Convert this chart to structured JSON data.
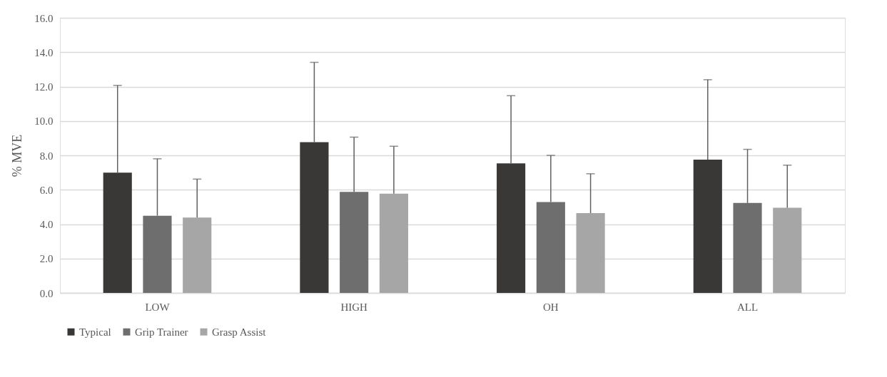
{
  "chart_data": {
    "type": "bar",
    "ylabel": "% MVE",
    "categories": [
      "LOW",
      "HIGH",
      "OH",
      "ALL"
    ],
    "series": [
      {
        "name": "Typical",
        "color": "#3a3836",
        "values": [
          7.0,
          8.77,
          7.53,
          7.75
        ],
        "errors": [
          [
            7.0,
            12.07
          ],
          [
            8.77,
            13.41
          ],
          [
            7.53,
            11.47
          ],
          [
            7.75,
            12.4
          ]
        ]
      },
      {
        "name": "Grip Trainer",
        "color": "#6e6e6e",
        "values": [
          4.49,
          5.88,
          5.28,
          5.23
        ],
        "errors": [
          [
            4.49,
            7.8
          ],
          [
            5.88,
            9.06
          ],
          [
            5.28,
            8.0
          ],
          [
            5.23,
            8.35
          ]
        ]
      },
      {
        "name": "Grasp Assist",
        "color": "#a6a6a6",
        "values": [
          4.38,
          5.77,
          4.64,
          4.95
        ],
        "errors": [
          [
            4.38,
            6.62
          ],
          [
            5.77,
            8.53
          ],
          [
            4.64,
            6.93
          ],
          [
            4.95,
            7.43
          ]
        ]
      }
    ],
    "ylim": [
      0,
      16
    ],
    "yticks": [
      {
        "value": 0,
        "label": "0.0"
      },
      {
        "value": 2,
        "label": "2.0"
      },
      {
        "value": 4,
        "label": "4.0"
      },
      {
        "value": 6,
        "label": "6.0"
      },
      {
        "value": 8,
        "label": "8.0"
      },
      {
        "value": 10,
        "label": "10.0"
      },
      {
        "value": 12,
        "label": "12.0"
      },
      {
        "value": 14,
        "label": "14.0"
      },
      {
        "value": 16,
        "label": "16.0"
      }
    ],
    "grid": "y",
    "legend": "bottom"
  }
}
